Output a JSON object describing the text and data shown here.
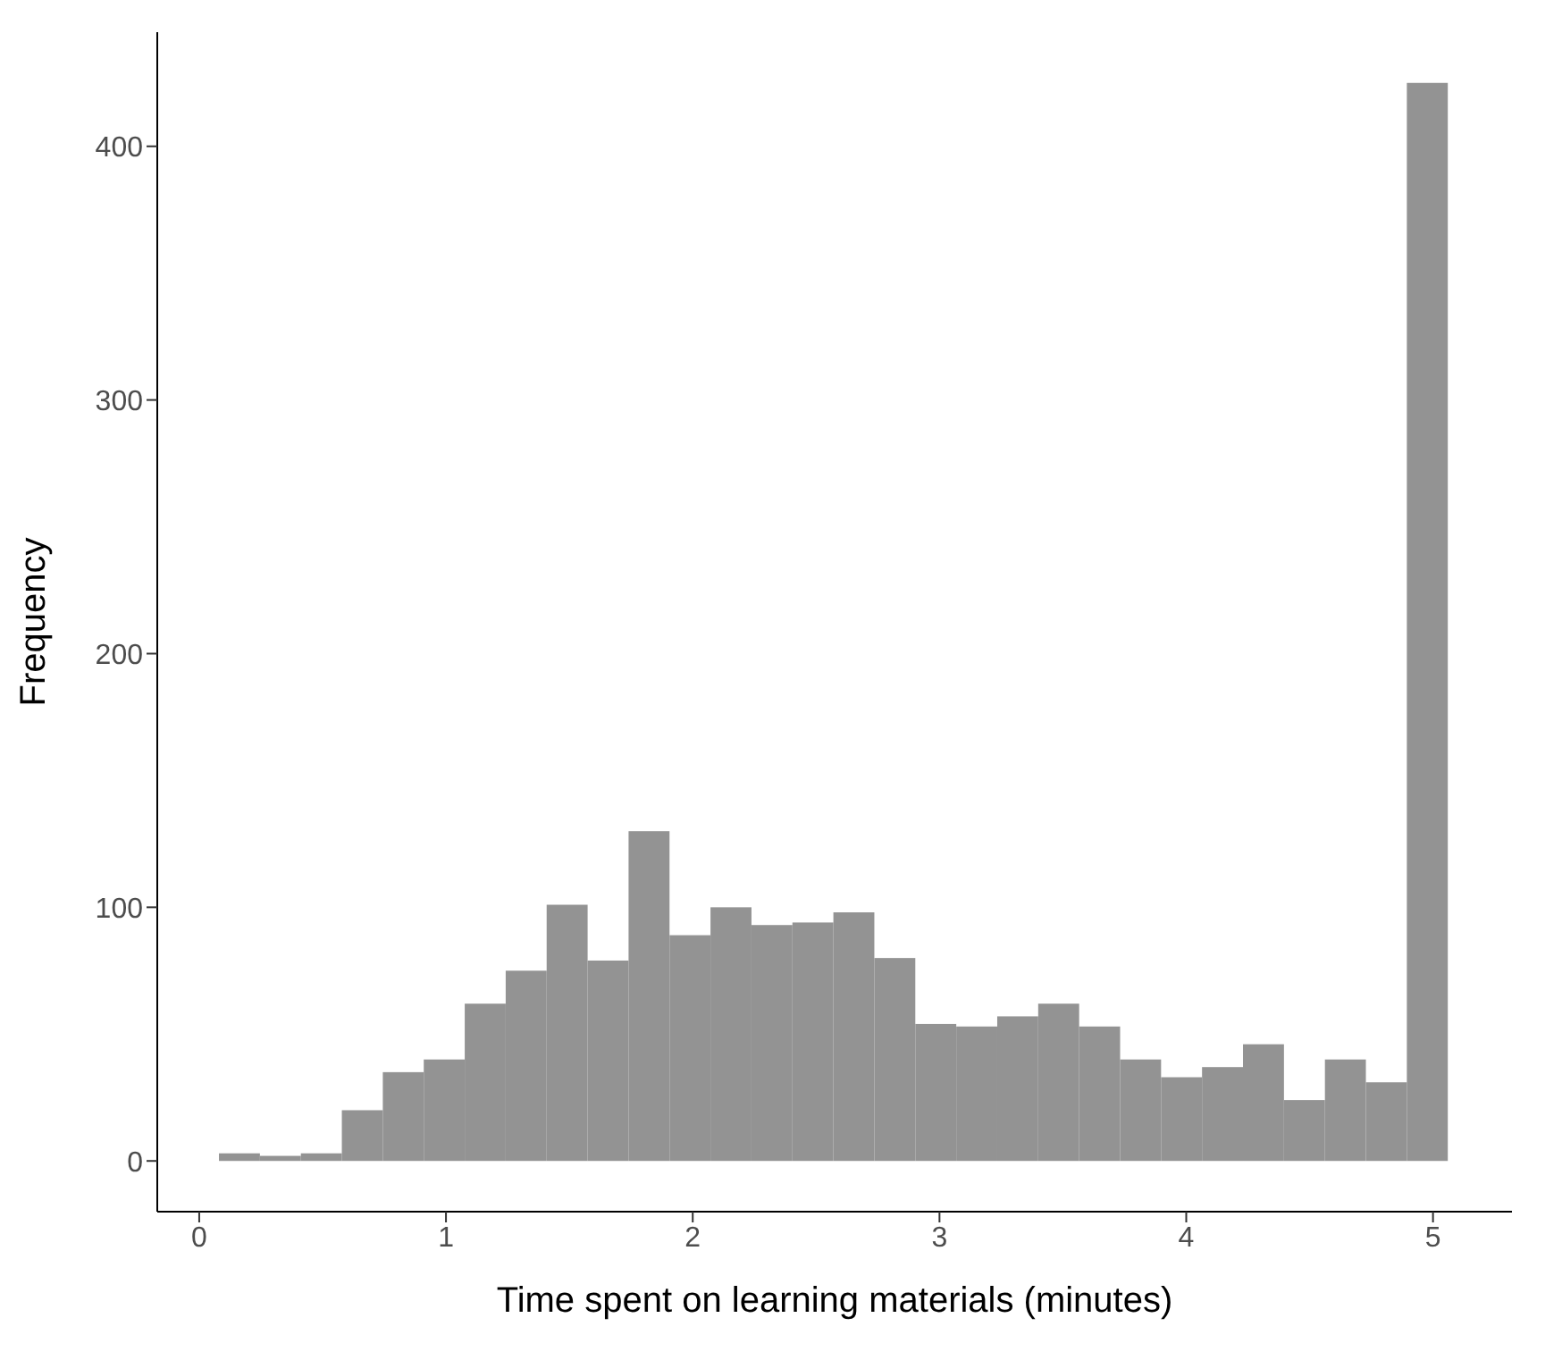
{
  "chart_data": {
    "type": "histogram",
    "xlabel": "Time spent on learning materials (minutes)",
    "ylabel": "Frequency",
    "bins": [
      0.08,
      0.246,
      0.412,
      0.578,
      0.744,
      0.91,
      1.076,
      1.242,
      1.408,
      1.574,
      1.74,
      1.906,
      2.072,
      2.238,
      2.404,
      2.57,
      2.736,
      2.902,
      3.068,
      3.234,
      3.4,
      3.566,
      3.732,
      3.898,
      4.064,
      4.23,
      4.396,
      4.562,
      4.728,
      4.894,
      5.06
    ],
    "values": [
      3,
      2,
      3,
      20,
      35,
      40,
      62,
      75,
      101,
      79,
      130,
      89,
      100,
      93,
      94,
      98,
      80,
      54,
      53,
      57,
      62,
      53,
      40,
      33,
      37,
      46,
      24,
      40,
      31,
      425
    ],
    "color": "#939393",
    "xlim": [
      -0.17,
      5.32
    ],
    "xticks": [
      0,
      1,
      2,
      3,
      4,
      5
    ],
    "ylim": [
      -20,
      445
    ],
    "yticks": [
      0,
      100,
      200,
      300,
      400
    ]
  }
}
